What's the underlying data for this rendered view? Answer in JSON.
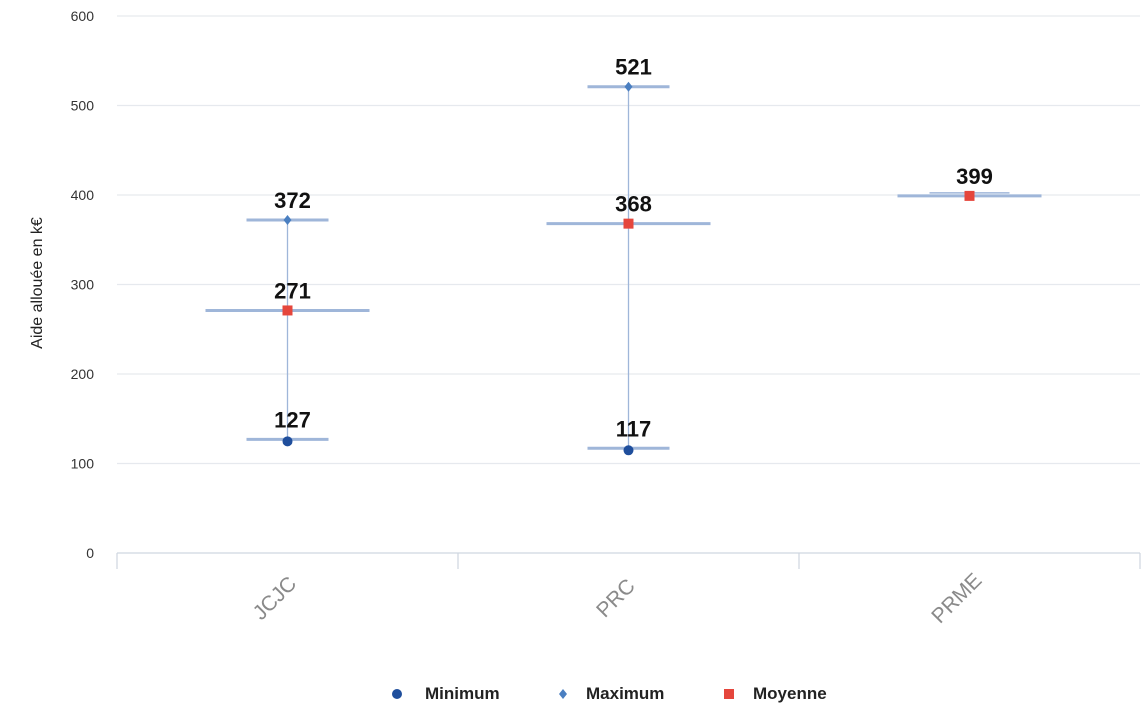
{
  "chart_data": {
    "type": "scatter",
    "title": "",
    "xlabel": "",
    "ylabel": "Aide allouée en k€",
    "ylim": [
      0,
      600
    ],
    "yticks": [
      0,
      100,
      200,
      300,
      400,
      500,
      600
    ],
    "grid": true,
    "legend_position": "bottom",
    "categories": [
      "JCJC",
      "PRC",
      "PRME"
    ],
    "series": [
      {
        "name": "Minimum",
        "marker": "circle",
        "color": "#1f4e9c",
        "values": [
          127,
          117,
          null
        ]
      },
      {
        "name": "Maximum",
        "marker": "diamond",
        "color": "#4a7fc1",
        "values": [
          372,
          521,
          null
        ]
      },
      {
        "name": "Moyenne",
        "marker": "square",
        "color": "#e5463c",
        "values": [
          271,
          368,
          399
        ]
      }
    ],
    "data_labels": [
      [
        "127",
        "372",
        "271"
      ],
      [
        "117",
        "521",
        "368"
      ],
      [
        "399"
      ]
    ],
    "colors": {
      "whisker": "#9fb6d9",
      "grid": "#e6e9ee",
      "axis": "#cfd6e0"
    }
  }
}
